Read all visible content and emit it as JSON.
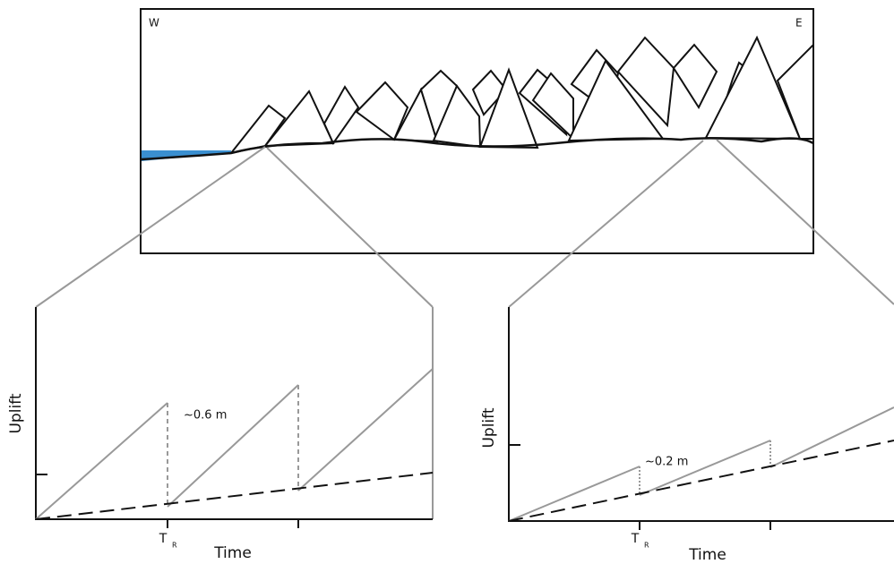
{
  "cross_section": {
    "west_label": "W",
    "east_label": "E"
  },
  "panels": [
    {
      "y_label": "Uplift",
      "x_label": "Time",
      "recurrence_main": "T",
      "recurrence_sub": "R",
      "annotation": "~0.6 m"
    },
    {
      "y_label": "Uplift",
      "x_label": "Time",
      "recurrence_main": "T",
      "recurrence_sub": "R",
      "annotation": "~0.2 m"
    }
  ]
}
